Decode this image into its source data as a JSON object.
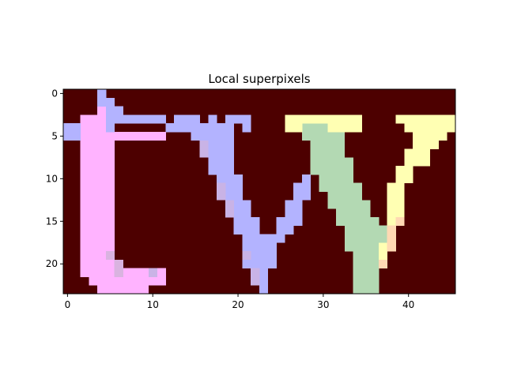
{
  "chart_data": {
    "type": "heatmap",
    "title": "Local superpixels",
    "xlabel": "",
    "ylabel": "",
    "xlim": [
      -0.5,
      45.5
    ],
    "ylim": [
      23.5,
      -0.5
    ],
    "x_ticks": [
      0,
      10,
      20,
      30,
      40
    ],
    "y_ticks": [
      0,
      5,
      10,
      15,
      20
    ],
    "grid": false,
    "legend": "none",
    "grid_size": {
      "cols": 46,
      "rows": 24
    },
    "background_color": "#4d0000",
    "region_colors": {
      "pink": "#ffb3ff",
      "blue": "#b3b3ff",
      "green": "#b3d9b3",
      "yellow": "#ffffb3",
      "pink_blue_overlap": "#d9b3e0",
      "blue_overlap": "#c9b3e6",
      "yellow_pink_overlap": "#ffd9b3"
    },
    "regions": [
      {
        "name": "pink",
        "rows": [
          [
            2,
            [
              4,
              4
            ]
          ],
          [
            3,
            [
              2,
              4
            ]
          ],
          [
            4,
            [
              2,
              4
            ]
          ],
          [
            5,
            [
              2,
              11
            ]
          ],
          [
            6,
            [
              2,
              5
            ]
          ],
          [
            7,
            [
              2,
              5
            ]
          ],
          [
            8,
            [
              2,
              5
            ]
          ],
          [
            9,
            [
              2,
              5
            ]
          ],
          [
            10,
            [
              2,
              5
            ]
          ],
          [
            11,
            [
              2,
              5
            ]
          ],
          [
            12,
            [
              2,
              5
            ]
          ],
          [
            13,
            [
              2,
              5
            ]
          ],
          [
            14,
            [
              2,
              5
            ]
          ],
          [
            15,
            [
              2,
              5
            ]
          ],
          [
            16,
            [
              2,
              5
            ]
          ],
          [
            17,
            [
              2,
              5
            ]
          ],
          [
            18,
            [
              2,
              5
            ]
          ],
          [
            19,
            [
              2,
              5
            ]
          ],
          [
            20,
            [
              2,
              5
            ]
          ],
          [
            21,
            [
              2,
              11
            ]
          ],
          [
            22,
            [
              3,
              11
            ]
          ],
          [
            23,
            [
              4,
              9
            ]
          ]
        ]
      },
      {
        "name": "blue",
        "rows": [
          [
            0,
            [
              4,
              4
            ]
          ],
          [
            1,
            [
              4,
              5
            ]
          ],
          [
            2,
            [
              5,
              6
            ]
          ],
          [
            3,
            [
              5,
              11
            ],
            [
              13,
              15
            ],
            [
              17,
              17
            ],
            [
              19,
              21
            ]
          ],
          [
            4,
            [
              0,
              1
            ],
            [
              5,
              5
            ],
            [
              12,
              19
            ],
            [
              21,
              21
            ]
          ],
          [
            5,
            [
              0,
              1
            ],
            [
              15,
              19
            ]
          ],
          [
            6,
            [
              16,
              19
            ]
          ],
          [
            7,
            [
              16,
              19
            ]
          ],
          [
            8,
            [
              17,
              19
            ]
          ],
          [
            9,
            [
              17,
              19
            ]
          ],
          [
            10,
            [
              18,
              20
            ],
            [
              28,
              28
            ]
          ],
          [
            11,
            [
              18,
              20
            ],
            [
              27,
              28
            ]
          ],
          [
            12,
            [
              19,
              20
            ],
            [
              27,
              28
            ]
          ],
          [
            13,
            [
              19,
              21
            ],
            [
              26,
              27
            ]
          ],
          [
            14,
            [
              19,
              21
            ],
            [
              26,
              27
            ]
          ],
          [
            15,
            [
              20,
              22
            ],
            [
              25,
              27
            ]
          ],
          [
            16,
            [
              20,
              22
            ],
            [
              25,
              26
            ]
          ],
          [
            17,
            [
              21,
              25
            ]
          ],
          [
            18,
            [
              21,
              24
            ]
          ],
          [
            19,
            [
              21,
              24
            ]
          ],
          [
            20,
            [
              21,
              24
            ]
          ],
          [
            21,
            [
              22,
              23
            ]
          ],
          [
            22,
            [
              22,
              23
            ]
          ],
          [
            23,
            [
              23,
              23
            ]
          ]
        ]
      },
      {
        "name": "green",
        "rows": [
          [
            4,
            [
              28,
              30
            ]
          ],
          [
            5,
            [
              28,
              32
            ]
          ],
          [
            6,
            [
              29,
              32
            ]
          ],
          [
            7,
            [
              29,
              32
            ]
          ],
          [
            8,
            [
              29,
              33
            ]
          ],
          [
            9,
            [
              29,
              33
            ]
          ],
          [
            10,
            [
              30,
              33
            ]
          ],
          [
            11,
            [
              30,
              34
            ]
          ],
          [
            12,
            [
              31,
              34
            ]
          ],
          [
            13,
            [
              31,
              35
            ]
          ],
          [
            14,
            [
              32,
              35
            ]
          ],
          [
            15,
            [
              32,
              36
            ]
          ],
          [
            16,
            [
              33,
              37
            ]
          ],
          [
            17,
            [
              33,
              37
            ]
          ],
          [
            18,
            [
              33,
              37
            ]
          ],
          [
            19,
            [
              34,
              37
            ]
          ],
          [
            20,
            [
              34,
              37
            ]
          ],
          [
            21,
            [
              34,
              36
            ]
          ],
          [
            22,
            [
              34,
              36
            ]
          ],
          [
            23,
            [
              34,
              36
            ]
          ]
        ]
      },
      {
        "name": "yellow",
        "rows": [
          [
            3,
            [
              26,
              34
            ],
            [
              39,
              45
            ]
          ],
          [
            4,
            [
              26,
              27
            ],
            [
              31,
              34
            ],
            [
              40,
              45
            ]
          ],
          [
            5,
            [
              41,
              44
            ]
          ],
          [
            6,
            [
              41,
              43
            ]
          ],
          [
            7,
            [
              40,
              42
            ]
          ],
          [
            8,
            [
              40,
              42
            ]
          ],
          [
            9,
            [
              39,
              40
            ]
          ],
          [
            10,
            [
              39,
              40
            ]
          ],
          [
            11,
            [
              38,
              39
            ]
          ],
          [
            12,
            [
              38,
              39
            ]
          ],
          [
            13,
            [
              38,
              39
            ]
          ],
          [
            14,
            [
              38,
              39
            ]
          ],
          [
            15,
            [
              38,
              39
            ]
          ],
          [
            16,
            [
              38,
              38
            ]
          ],
          [
            17,
            [
              38,
              38
            ]
          ],
          [
            18,
            [
              37,
              38
            ]
          ],
          [
            19,
            [
              37,
              37
            ]
          ]
        ]
      },
      {
        "name": "pink_blue_overlap",
        "rows": [
          [
            19,
            [
              5,
              5
            ]
          ],
          [
            20,
            [
              6,
              6
            ]
          ],
          [
            21,
            [
              6,
              6
            ]
          ]
        ]
      },
      {
        "name": "blue_overlap",
        "rows": [
          [
            6,
            [
              16,
              16
            ]
          ],
          [
            7,
            [
              16,
              16
            ]
          ],
          [
            11,
            [
              18,
              18
            ]
          ],
          [
            12,
            [
              18,
              18
            ]
          ],
          [
            13,
            [
              19,
              19
            ]
          ],
          [
            14,
            [
              19,
              19
            ]
          ],
          [
            19,
            [
              21,
              21
            ]
          ],
          [
            21,
            [
              10,
              10
            ],
            [
              22,
              22
            ]
          ],
          [
            22,
            [
              22,
              22
            ]
          ]
        ]
      },
      {
        "name": "yellow_pink_overlap",
        "rows": [
          [
            15,
            [
              39,
              39
            ]
          ],
          [
            16,
            [
              38,
              38
            ]
          ],
          [
            17,
            [
              38,
              38
            ]
          ],
          [
            18,
            [
              38,
              38
            ]
          ],
          [
            20,
            [
              37,
              37
            ]
          ]
        ]
      }
    ]
  }
}
